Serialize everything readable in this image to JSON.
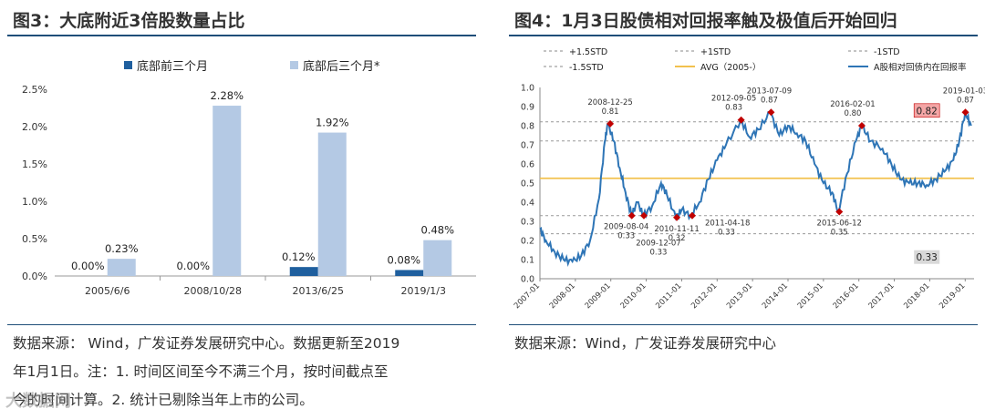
{
  "left": {
    "title": "图3：大底附近3倍股数量占比",
    "source_lines": [
      "数据来源：  Wind，广发证券发展研究中心。数据更新至2019",
      "年1月1日。注：1. 时间区间至今不满三个月，按时间截点至",
      "今的时间计算。2. 统计已剔除当年上市的公司。"
    ]
  },
  "right": {
    "title": "图4：1月3日股债相对回报率触及极值后开始回归",
    "source_lines": [
      "数据来源：Wind，广发证券发展研究中心"
    ]
  },
  "watermark": "大数据网",
  "colors": {
    "dark_bar": "#1f5f9e",
    "light_bar": "#b4c9e4",
    "line": "#2e75b6",
    "avg": "#f2c14e",
    "marker": "#c00000",
    "label_box": "#f4a6a6",
    "grey_box": "#d9d9d9"
  },
  "chart_data": [
    {
      "type": "bar",
      "categories": [
        "2005/6/6",
        "2008/10/28",
        "2013/6/25",
        "2019/1/3"
      ],
      "series": [
        {
          "name": "底部前三个月",
          "values": [
            0.0,
            0.0,
            0.12,
            0.08
          ],
          "labels": [
            "0.00%",
            "0.00%",
            "0.12%",
            "0.08%"
          ]
        },
        {
          "name": "底部后三个月*",
          "values": [
            0.23,
            2.28,
            1.92,
            0.48
          ],
          "labels": [
            "0.23%",
            "2.28%",
            "1.92%",
            "0.48%"
          ]
        }
      ],
      "yticks": [
        "0.0%",
        "0.5%",
        "1.0%",
        "1.5%",
        "2.0%",
        "2.5%"
      ],
      "ylim": [
        0,
        2.5
      ],
      "legend_position": "top"
    },
    {
      "type": "line",
      "legend": [
        "+1.5STD",
        "+1STD",
        "-1STD",
        "-1.5STD",
        "AVG（2005-）",
        "A股相对回债内在回报率"
      ],
      "yticks": [
        "0.0",
        "0.1",
        "0.2",
        "0.3",
        "0.4",
        "0.5",
        "0.6",
        "0.7",
        "0.8",
        "0.9",
        "1.0"
      ],
      "ylim": [
        0,
        1.0
      ],
      "xticks": [
        "2007-01",
        "2008-01",
        "2009-01",
        "2010-01",
        "2011-01",
        "2012-01",
        "2013-01",
        "2014-01",
        "2015-01",
        "2016-01",
        "2017-01",
        "2018-01",
        "2019-01"
      ],
      "xlim": [
        "2007-01",
        "2019-04"
      ],
      "reference_lines": {
        "plus_1_5_std": 0.82,
        "plus_1_std": 0.72,
        "avg": 0.525,
        "minus_1_std": 0.33,
        "minus_1_5_std": 0.235
      },
      "series_points": [
        [
          "2007-01",
          0.26
        ],
        [
          "2007-03",
          0.2
        ],
        [
          "2007-06",
          0.14
        ],
        [
          "2007-09",
          0.1
        ],
        [
          "2007-12",
          0.09
        ],
        [
          "2008-03",
          0.12
        ],
        [
          "2008-06",
          0.2
        ],
        [
          "2008-09",
          0.42
        ],
        [
          "2008-11",
          0.72
        ],
        [
          "2008-12",
          0.81
        ],
        [
          "2009-02",
          0.72
        ],
        [
          "2009-04",
          0.58
        ],
        [
          "2009-06",
          0.45
        ],
        [
          "2009-08",
          0.33
        ],
        [
          "2009-10",
          0.4
        ],
        [
          "2009-12",
          0.33
        ],
        [
          "2010-03",
          0.38
        ],
        [
          "2010-06",
          0.5
        ],
        [
          "2010-08",
          0.44
        ],
        [
          "2010-11",
          0.32
        ],
        [
          "2011-01",
          0.36
        ],
        [
          "2011-04",
          0.33
        ],
        [
          "2011-07",
          0.4
        ],
        [
          "2011-10",
          0.52
        ],
        [
          "2012-01",
          0.62
        ],
        [
          "2012-04",
          0.7
        ],
        [
          "2012-09",
          0.83
        ],
        [
          "2012-12",
          0.74
        ],
        [
          "2013-03",
          0.78
        ],
        [
          "2013-07",
          0.87
        ],
        [
          "2013-10",
          0.75
        ],
        [
          "2014-01",
          0.8
        ],
        [
          "2014-04",
          0.76
        ],
        [
          "2014-07",
          0.72
        ],
        [
          "2014-10",
          0.6
        ],
        [
          "2015-01",
          0.5
        ],
        [
          "2015-04",
          0.45
        ],
        [
          "2015-06",
          0.35
        ],
        [
          "2015-09",
          0.55
        ],
        [
          "2015-12",
          0.72
        ],
        [
          "2016-02",
          0.8
        ],
        [
          "2016-05",
          0.72
        ],
        [
          "2016-09",
          0.68
        ],
        [
          "2016-12",
          0.6
        ],
        [
          "2017-03",
          0.52
        ],
        [
          "2017-06",
          0.5
        ],
        [
          "2017-09",
          0.5
        ],
        [
          "2017-12",
          0.49
        ],
        [
          "2018-03",
          0.52
        ],
        [
          "2018-06",
          0.56
        ],
        [
          "2018-09",
          0.62
        ],
        [
          "2018-11",
          0.72
        ],
        [
          "2019-01",
          0.87
        ],
        [
          "2019-03",
          0.8
        ]
      ],
      "annotations": [
        {
          "date": "2008-12-25",
          "value": "0.81"
        },
        {
          "date": "2009-08-04",
          "value": "0.33"
        },
        {
          "date": "2009-12-07",
          "value": "0.33"
        },
        {
          "date": "2010-11-11",
          "value": "0.32"
        },
        {
          "date": "2011-04-18",
          "value": "0.33"
        },
        {
          "date": "2012-09-05",
          "value": "0.83"
        },
        {
          "date": "2013-07-09",
          "value": "0.87"
        },
        {
          "date": "2015-06-12",
          "value": "0.35"
        },
        {
          "date": "2016-02-01",
          "value": "0.80"
        },
        {
          "date": "2019-01-03",
          "value": "0.87"
        }
      ],
      "boxes": [
        "0.82",
        "0.33"
      ]
    }
  ]
}
